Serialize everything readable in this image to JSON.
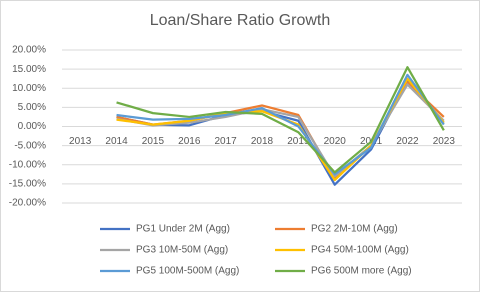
{
  "chart_data": {
    "type": "line",
    "title": "Loan/Share Ratio Growth",
    "categories": [
      "2013",
      "2014",
      "2015",
      "2016",
      "2017",
      "2018",
      "2019",
      "2020",
      "2021",
      "2022",
      "2023"
    ],
    "series": [
      {
        "name": "PG1 Under 2M (Agg)",
        "color": "#4472c4",
        "values": [
          null,
          2.5,
          0.5,
          0.3,
          3,
          4,
          1.5,
          -15.2,
          -6,
          12,
          1
        ]
      },
      {
        "name": "PG2 2M-10M (Agg)",
        "color": "#ed7d31",
        "values": [
          null,
          2.5,
          0.5,
          1.5,
          3.5,
          5.5,
          3,
          -13.5,
          -5,
          11.5,
          2.5
        ]
      },
      {
        "name": "PG3 10M-50M (Agg)",
        "color": "#a5a5a5",
        "values": [
          null,
          2,
          0.3,
          1,
          2.5,
          4.5,
          2.5,
          -13,
          -5,
          11,
          1.5
        ]
      },
      {
        "name": "PG4 50M-100M (Agg)",
        "color": "#ffc000",
        "values": [
          null,
          1.8,
          0.5,
          1.5,
          3.5,
          4,
          0.5,
          -14,
          -5,
          12.5,
          1
        ]
      },
      {
        "name": "PG5 100M-500M (Agg)",
        "color": "#5b9bd5",
        "values": [
          null,
          3,
          1.8,
          2,
          3,
          4.8,
          0,
          -12.5,
          -5.5,
          13.5,
          0.5
        ]
      },
      {
        "name": "PG6 500M more (Agg)",
        "color": "#70ad47",
        "values": [
          null,
          6.3,
          3.5,
          2.5,
          3.8,
          3.3,
          -1.5,
          -12,
          -4,
          15.5,
          -1
        ]
      }
    ],
    "ylim": [
      -20,
      20
    ],
    "yticks": [
      {
        "value": -20,
        "label": "-20.00%"
      },
      {
        "value": -15,
        "label": "-15.00%"
      },
      {
        "value": -10,
        "label": "-10.00%"
      },
      {
        "value": -5,
        "label": "-5.00%"
      },
      {
        "value": 0,
        "label": "0.00%"
      },
      {
        "value": 5,
        "label": "5.00%"
      },
      {
        "value": 10,
        "label": "10.00%"
      },
      {
        "value": 15,
        "label": "15.00%"
      },
      {
        "value": 20,
        "label": "20.00%"
      }
    ],
    "grid": true,
    "legend": "bottom"
  }
}
